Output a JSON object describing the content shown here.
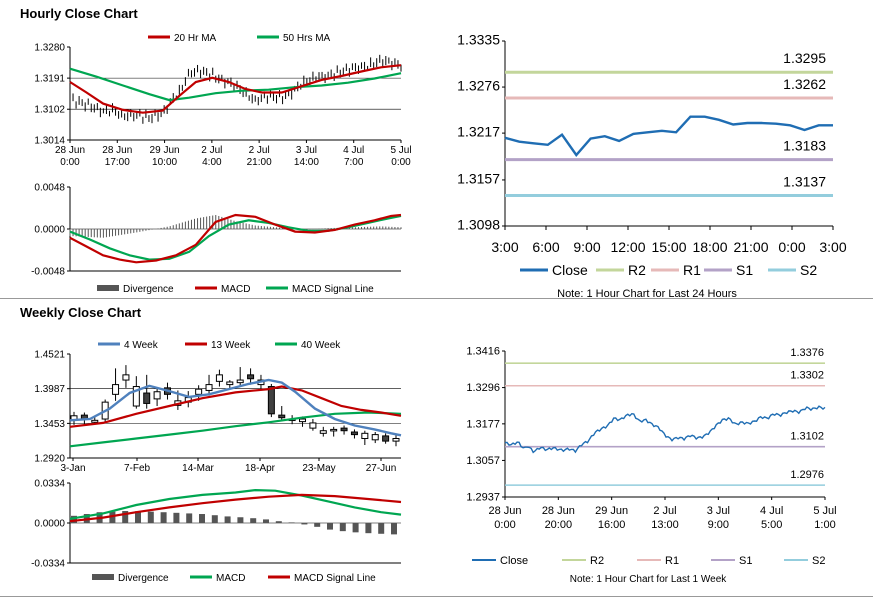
{
  "hourly_title": "Hourly Close Chart",
  "weekly_title": "Weekly Close Chart",
  "colors": {
    "red": "#c00000",
    "green": "#00a651",
    "blue": "#4f81bd",
    "navy": "#1f6db3",
    "r2": "#c3d69b",
    "r1": "#e6b9b8",
    "s1": "#b3a2c7",
    "s2": "#93cddd",
    "bar": "#555555",
    "candle_dark": "#404040"
  },
  "chart_data": [
    {
      "id": "hourly_price",
      "type": "line",
      "legend": [
        "20 Hr MA",
        "50 Hrs MA"
      ],
      "yticks": [
        "1.3280",
        "1.3191",
        "1.3102",
        "1.3014"
      ],
      "ylim": [
        1.3014,
        1.328
      ],
      "xtick_labels": [
        [
          "28 Jun",
          "0:00"
        ],
        [
          "28 Jun",
          "17:00"
        ],
        [
          "29 Jun",
          "10:00"
        ],
        [
          "2 Jul",
          "4:00"
        ],
        [
          "2 Jul",
          "21:00"
        ],
        [
          "3 Jul",
          "14:00"
        ],
        [
          "4 Jul",
          "7:00"
        ],
        [
          "5 Jul",
          "0:00"
        ]
      ],
      "close_keys": [
        [
          0,
          1.313
        ],
        [
          0.06,
          1.3112
        ],
        [
          0.1,
          1.3096
        ],
        [
          0.13,
          1.31
        ],
        [
          0.16,
          1.3082
        ],
        [
          0.2,
          1.3086
        ],
        [
          0.24,
          1.3078
        ],
        [
          0.28,
          1.309
        ],
        [
          0.31,
          1.313
        ],
        [
          0.33,
          1.315
        ],
        [
          0.36,
          1.3205
        ],
        [
          0.39,
          1.3212
        ],
        [
          0.43,
          1.32
        ],
        [
          0.46,
          1.3185
        ],
        [
          0.5,
          1.317
        ],
        [
          0.53,
          1.3145
        ],
        [
          0.56,
          1.3128
        ],
        [
          0.6,
          1.314
        ],
        [
          0.64,
          1.3135
        ],
        [
          0.67,
          1.315
        ],
        [
          0.7,
          1.3175
        ],
        [
          0.74,
          1.3192
        ],
        [
          0.78,
          1.3198
        ],
        [
          0.82,
          1.321
        ],
        [
          0.86,
          1.322
        ],
        [
          0.9,
          1.3225
        ],
        [
          0.94,
          1.3242
        ],
        [
          1,
          1.3228
        ]
      ],
      "ma20": [
        [
          0,
          1.318
        ],
        [
          0.05,
          1.315
        ],
        [
          0.1,
          1.3118
        ],
        [
          0.16,
          1.31
        ],
        [
          0.22,
          1.3092
        ],
        [
          0.28,
          1.3098
        ],
        [
          0.33,
          1.314
        ],
        [
          0.38,
          1.318
        ],
        [
          0.43,
          1.3192
        ],
        [
          0.48,
          1.318
        ],
        [
          0.53,
          1.316
        ],
        [
          0.58,
          1.315
        ],
        [
          0.64,
          1.315
        ],
        [
          0.7,
          1.3168
        ],
        [
          0.76,
          1.3186
        ],
        [
          0.82,
          1.3197
        ],
        [
          0.88,
          1.321
        ],
        [
          0.94,
          1.3222
        ],
        [
          1,
          1.3228
        ]
      ],
      "ma50": [
        [
          0,
          1.3218
        ],
        [
          0.08,
          1.3195
        ],
        [
          0.16,
          1.317
        ],
        [
          0.24,
          1.3145
        ],
        [
          0.3,
          1.3128
        ],
        [
          0.36,
          1.3135
        ],
        [
          0.44,
          1.3148
        ],
        [
          0.52,
          1.3155
        ],
        [
          0.6,
          1.3158
        ],
        [
          0.68,
          1.3165
        ],
        [
          0.76,
          1.317
        ],
        [
          0.84,
          1.3178
        ],
        [
          0.92,
          1.319
        ],
        [
          1,
          1.3205
        ]
      ]
    },
    {
      "id": "hourly_macd",
      "type": "line",
      "legend": [
        "Divergence",
        "MACD",
        "MACD Signal Line"
      ],
      "yticks": [
        "0.0048",
        "0.0000",
        "-0.0048"
      ],
      "ylim": [
        -0.0048,
        0.0048
      ],
      "macd": [
        [
          0,
          -0.001
        ],
        [
          0.05,
          -0.002
        ],
        [
          0.1,
          -0.003
        ],
        [
          0.15,
          -0.0035
        ],
        [
          0.2,
          -0.0038
        ],
        [
          0.26,
          -0.0036
        ],
        [
          0.32,
          -0.003
        ],
        [
          0.38,
          -0.0018
        ],
        [
          0.44,
          0.0008
        ],
        [
          0.5,
          0.0016
        ],
        [
          0.56,
          0.0014
        ],
        [
          0.62,
          0.0005
        ],
        [
          0.68,
          -0.0003
        ],
        [
          0.74,
          -0.0004
        ],
        [
          0.8,
          -0.0001
        ],
        [
          0.86,
          0.0005
        ],
        [
          0.92,
          0.001
        ],
        [
          0.97,
          0.0015
        ],
        [
          1,
          0.0016
        ]
      ],
      "signal": [
        [
          0,
          -0.0003
        ],
        [
          0.06,
          -0.0012
        ],
        [
          0.12,
          -0.0022
        ],
        [
          0.18,
          -0.003
        ],
        [
          0.24,
          -0.0035
        ],
        [
          0.3,
          -0.0034
        ],
        [
          0.36,
          -0.0026
        ],
        [
          0.42,
          -0.0008
        ],
        [
          0.48,
          0.0005
        ],
        [
          0.54,
          0.001
        ],
        [
          0.6,
          0.0007
        ],
        [
          0.66,
          0.0002
        ],
        [
          0.72,
          -0.0002
        ],
        [
          0.78,
          -0.0002
        ],
        [
          0.84,
          0.0002
        ],
        [
          0.9,
          0.0007
        ],
        [
          0.96,
          0.0012
        ],
        [
          1,
          0.0015
        ]
      ],
      "divergence_keys": [
        [
          0,
          -0.0008
        ],
        [
          0.1,
          -0.001
        ],
        [
          0.2,
          -0.0004
        ],
        [
          0.3,
          0.0003
        ],
        [
          0.38,
          0.0012
        ],
        [
          0.44,
          0.0016
        ],
        [
          0.5,
          0.0009
        ],
        [
          0.56,
          0.0004
        ],
        [
          0.62,
          0.0002
        ],
        [
          0.7,
          -0.0001
        ],
        [
          0.78,
          0.0001
        ],
        [
          0.86,
          0.0002
        ],
        [
          0.94,
          0.0003
        ],
        [
          1,
          0.0002
        ]
      ]
    },
    {
      "id": "hourly_close_24h",
      "type": "line",
      "legend": [
        "Close",
        "R2",
        "R1",
        "S1",
        "S2"
      ],
      "note": "Note: 1 Hour Chart for Last 24 Hours",
      "yticks": [
        "1.3335",
        "1.3276",
        "1.3217",
        "1.3157",
        "1.3098"
      ],
      "ylim": [
        1.3098,
        1.3335
      ],
      "xticks": [
        "3:00",
        "6:00",
        "9:00",
        "12:00",
        "15:00",
        "18:00",
        "21:00",
        "0:00",
        "3:00"
      ],
      "levels": {
        "R2": "1.3295",
        "R1": "1.3262",
        "S1": "1.3183",
        "S2": "1.3137"
      },
      "close": [
        1.3211,
        1.3206,
        1.3204,
        1.3202,
        1.3215,
        1.3189,
        1.321,
        1.3213,
        1.3207,
        1.3216,
        1.3218,
        1.322,
        1.3218,
        1.3238,
        1.3238,
        1.3234,
        1.3228,
        1.323,
        1.323,
        1.3229,
        1.3227,
        1.3221,
        1.3227,
        1.3227
      ]
    },
    {
      "id": "weekly_price",
      "type": "line",
      "legend": [
        "4 Week",
        "13 Week",
        "40 Week"
      ],
      "yticks": [
        "1.4521",
        "1.3987",
        "1.3453",
        "1.2920"
      ],
      "ylim": [
        1.292,
        1.4521
      ],
      "xticks": [
        "3-Jan",
        "7-Feb",
        "14-Mar",
        "18-Apr",
        "23-May",
        "27-Jun"
      ],
      "candles": [
        [
          1.35,
          1.357,
          1.343,
          1.363
        ],
        [
          1.358,
          1.352,
          1.342,
          1.362
        ],
        [
          1.347,
          1.35,
          1.343,
          1.355
        ],
        [
          1.352,
          1.378,
          1.348,
          1.382
        ],
        [
          1.39,
          1.405,
          1.38,
          1.43
        ],
        [
          1.412,
          1.42,
          1.4,
          1.435
        ],
        [
          1.372,
          1.402,
          1.368,
          1.418
        ],
        [
          1.392,
          1.376,
          1.368,
          1.42
        ],
        [
          1.383,
          1.394,
          1.372,
          1.4
        ],
        [
          1.4,
          1.39,
          1.382,
          1.408
        ],
        [
          1.373,
          1.38,
          1.366,
          1.396
        ],
        [
          1.378,
          1.385,
          1.37,
          1.395
        ],
        [
          1.39,
          1.398,
          1.38,
          1.404
        ],
        [
          1.396,
          1.405,
          1.388,
          1.42
        ],
        [
          1.41,
          1.42,
          1.402,
          1.428
        ],
        [
          1.405,
          1.409,
          1.398,
          1.412
        ],
        [
          1.408,
          1.412,
          1.402,
          1.432
        ],
        [
          1.42,
          1.414,
          1.405,
          1.43
        ],
        [
          1.405,
          1.412,
          1.398,
          1.42
        ],
        [
          1.402,
          1.36,
          1.355,
          1.406
        ],
        [
          1.358,
          1.354,
          1.35,
          1.372
        ],
        [
          1.35,
          1.352,
          1.344,
          1.358
        ],
        [
          1.348,
          1.352,
          1.34,
          1.356
        ],
        [
          1.338,
          1.346,
          1.334,
          1.352
        ],
        [
          1.33,
          1.334,
          1.325,
          1.34
        ],
        [
          1.334,
          1.336,
          1.325,
          1.34
        ],
        [
          1.338,
          1.334,
          1.328,
          1.342
        ],
        [
          1.332,
          1.328,
          1.322,
          1.336
        ],
        [
          1.322,
          1.33,
          1.312,
          1.334
        ],
        [
          1.32,
          1.328,
          1.315,
          1.332
        ],
        [
          1.326,
          1.318,
          1.314,
          1.33
        ],
        [
          1.318,
          1.322,
          1.31,
          1.328
        ]
      ],
      "ma4": [
        [
          0,
          1.35
        ],
        [
          0.06,
          1.352
        ],
        [
          0.12,
          1.368
        ],
        [
          0.18,
          1.392
        ],
        [
          0.24,
          1.403
        ],
        [
          0.3,
          1.395
        ],
        [
          0.36,
          1.386
        ],
        [
          0.42,
          1.39
        ],
        [
          0.48,
          1.398
        ],
        [
          0.54,
          1.406
        ],
        [
          0.6,
          1.412
        ],
        [
          0.64,
          1.408
        ],
        [
          0.68,
          1.394
        ],
        [
          0.74,
          1.368
        ],
        [
          0.8,
          1.352
        ],
        [
          0.86,
          1.342
        ],
        [
          0.92,
          1.336
        ],
        [
          0.97,
          1.33
        ],
        [
          1,
          1.327
        ]
      ],
      "ma13": [
        [
          0,
          1.34
        ],
        [
          0.1,
          1.346
        ],
        [
          0.2,
          1.36
        ],
        [
          0.3,
          1.372
        ],
        [
          0.4,
          1.384
        ],
        [
          0.5,
          1.393
        ],
        [
          0.6,
          1.398
        ],
        [
          0.64,
          1.402
        ],
        [
          0.7,
          1.396
        ],
        [
          0.76,
          1.384
        ],
        [
          0.82,
          1.372
        ],
        [
          0.88,
          1.366
        ],
        [
          0.94,
          1.362
        ],
        [
          1,
          1.357
        ]
      ],
      "ma40": [
        [
          0,
          1.31
        ],
        [
          0.1,
          1.316
        ],
        [
          0.2,
          1.322
        ],
        [
          0.3,
          1.328
        ],
        [
          0.4,
          1.334
        ],
        [
          0.5,
          1.341
        ],
        [
          0.6,
          1.347
        ],
        [
          0.7,
          1.354
        ],
        [
          0.8,
          1.36
        ],
        [
          0.9,
          1.362
        ],
        [
          1,
          1.36
        ]
      ]
    },
    {
      "id": "weekly_macd",
      "type": "line",
      "legend": [
        "Divergence",
        "MACD",
        "MACD Signal Line"
      ],
      "yticks": [
        "0.0334",
        "0.0000",
        "-0.0334"
      ],
      "ylim": [
        -0.0334,
        0.0334
      ],
      "macd": [
        [
          0,
          0.0035
        ],
        [
          0.1,
          0.008
        ],
        [
          0.2,
          0.015
        ],
        [
          0.3,
          0.02
        ],
        [
          0.4,
          0.0235
        ],
        [
          0.5,
          0.0255
        ],
        [
          0.56,
          0.0275
        ],
        [
          0.62,
          0.027
        ],
        [
          0.7,
          0.023
        ],
        [
          0.78,
          0.018
        ],
        [
          0.86,
          0.013
        ],
        [
          0.94,
          0.009
        ],
        [
          1,
          0.007
        ]
      ],
      "signal": [
        [
          0,
          0.0015
        ],
        [
          0.1,
          0.0045
        ],
        [
          0.2,
          0.009
        ],
        [
          0.3,
          0.013
        ],
        [
          0.4,
          0.0165
        ],
        [
          0.5,
          0.0195
        ],
        [
          0.6,
          0.022
        ],
        [
          0.7,
          0.0235
        ],
        [
          0.8,
          0.0225
        ],
        [
          0.9,
          0.02
        ],
        [
          1,
          0.0175
        ]
      ],
      "divergence": [
        0.006,
        0.0075,
        0.009,
        0.0095,
        0.01,
        0.0098,
        0.0095,
        0.009,
        0.0085,
        0.008,
        0.0075,
        0.0065,
        0.0055,
        0.0048,
        0.004,
        0.003,
        0.0015,
        0.0005,
        -0.0012,
        -0.0032,
        -0.0055,
        -0.0068,
        -0.0078,
        -0.0085,
        -0.009,
        -0.0095
      ]
    },
    {
      "id": "weekly_close_1w",
      "type": "line",
      "legend": [
        "Close",
        "R2",
        "R1",
        "S1",
        "S2"
      ],
      "note": "Note: 1 Hour Chart for Last 1 Week",
      "yticks": [
        "1.3416",
        "1.3296",
        "1.3177",
        "1.3057",
        "1.2937"
      ],
      "ylim": [
        1.2937,
        1.3416
      ],
      "xtick_labels": [
        [
          "28 Jun",
          "0:00"
        ],
        [
          "28 Jun",
          "20:00"
        ],
        [
          "29 Jun",
          "16:00"
        ],
        [
          "2 Jul",
          "13:00"
        ],
        [
          "3 Jul",
          "9:00"
        ],
        [
          "4 Jul",
          "5:00"
        ],
        [
          "5 Jul",
          "1:00"
        ]
      ],
      "levels": {
        "R2": "1.3376",
        "R1": "1.3302",
        "S1": "1.3102",
        "S2": "1.2976"
      },
      "close_keys": [
        [
          0,
          1.3115
        ],
        [
          0.02,
          1.3108
        ],
        [
          0.04,
          1.3118
        ],
        [
          0.06,
          1.3094
        ],
        [
          0.07,
          1.3105
        ],
        [
          0.09,
          1.3085
        ],
        [
          0.11,
          1.31
        ],
        [
          0.13,
          1.3092
        ],
        [
          0.15,
          1.3098
        ],
        [
          0.18,
          1.309
        ],
        [
          0.2,
          1.3095
        ],
        [
          0.22,
          1.3088
        ],
        [
          0.24,
          1.311
        ],
        [
          0.26,
          1.312
        ],
        [
          0.28,
          1.3148
        ],
        [
          0.3,
          1.316
        ],
        [
          0.32,
          1.317
        ],
        [
          0.34,
          1.3195
        ],
        [
          0.36,
          1.319
        ],
        [
          0.38,
          1.3205
        ],
        [
          0.4,
          1.321
        ],
        [
          0.42,
          1.3185
        ],
        [
          0.44,
          1.319
        ],
        [
          0.46,
          1.3175
        ],
        [
          0.48,
          1.3165
        ],
        [
          0.5,
          1.314
        ],
        [
          0.52,
          1.3125
        ],
        [
          0.54,
          1.3132
        ],
        [
          0.56,
          1.3128
        ],
        [
          0.58,
          1.314
        ],
        [
          0.6,
          1.313
        ],
        [
          0.62,
          1.3135
        ],
        [
          0.64,
          1.315
        ],
        [
          0.66,
          1.3172
        ],
        [
          0.68,
          1.319
        ],
        [
          0.7,
          1.3195
        ],
        [
          0.72,
          1.3175
        ],
        [
          0.74,
          1.3182
        ],
        [
          0.76,
          1.3178
        ],
        [
          0.78,
          1.3185
        ],
        [
          0.8,
          1.32
        ],
        [
          0.82,
          1.3195
        ],
        [
          0.84,
          1.321
        ],
        [
          0.86,
          1.3205
        ],
        [
          0.88,
          1.3215
        ],
        [
          0.9,
          1.322
        ],
        [
          0.92,
          1.3215
        ],
        [
          0.94,
          1.323
        ],
        [
          0.96,
          1.3225
        ],
        [
          0.98,
          1.3232
        ],
        [
          1,
          1.3228
        ]
      ]
    }
  ]
}
